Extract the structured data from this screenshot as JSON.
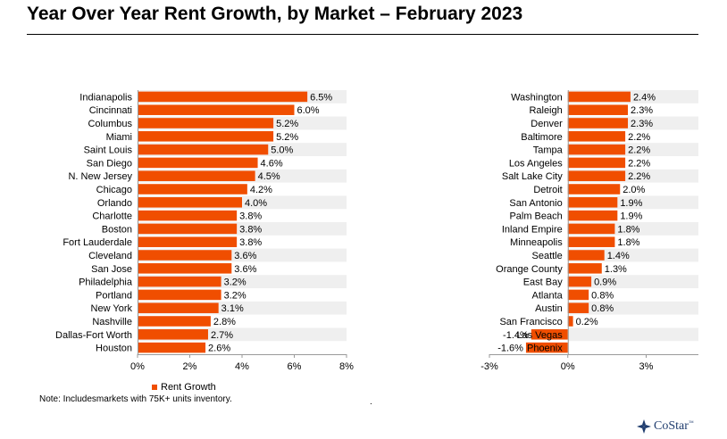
{
  "header": {
    "title": "Year Over Year Rent Growth, by Market –  February 2023"
  },
  "legend": {
    "label": "Rent Growth"
  },
  "note": "Note: Includesmarkets with 75K+ units inventory.",
  "stray_mark": ".",
  "logo": {
    "name": "CoStar",
    "tm": "™"
  },
  "colors": {
    "bar": "#f04e00",
    "stripe": "#efefef",
    "axis": "#999999"
  },
  "chart_data": [
    {
      "type": "bar",
      "orientation": "horizontal",
      "categories": [
        "Indianapolis",
        "Cincinnati",
        "Columbus",
        "Miami",
        "Saint Louis",
        "San Diego",
        "N. New Jersey",
        "Chicago",
        "Orlando",
        "Charlotte",
        "Boston",
        "Fort Lauderdale",
        "Cleveland",
        "San Jose",
        "Philadelphia",
        "Portland",
        "New York",
        "Nashville",
        "Dallas-Fort Worth",
        "Houston"
      ],
      "series": [
        {
          "name": "Rent Growth",
          "values": [
            6.5,
            6.0,
            5.2,
            5.2,
            5.0,
            4.6,
            4.5,
            4.2,
            4.0,
            3.8,
            3.8,
            3.8,
            3.6,
            3.6,
            3.2,
            3.2,
            3.1,
            2.8,
            2.7,
            2.6
          ]
        }
      ],
      "value_labels": [
        "6.5%",
        "6.0%",
        "5.2%",
        "5.2%",
        "5.0%",
        "4.6%",
        "4.5%",
        "4.2%",
        "4.0%",
        "3.8%",
        "3.8%",
        "3.8%",
        "3.6%",
        "3.6%",
        "3.2%",
        "3.2%",
        "3.1%",
        "2.8%",
        "2.7%",
        "2.6%"
      ],
      "xlim": [
        0,
        8
      ],
      "xticks": [
        0,
        2,
        4,
        6,
        8
      ],
      "xtick_labels": [
        "0%",
        "2%",
        "4%",
        "6%",
        "8%"
      ]
    },
    {
      "type": "bar",
      "orientation": "horizontal",
      "categories": [
        "Washington",
        "Raleigh",
        "Denver",
        "Baltimore",
        "Tampa",
        "Los Angeles",
        "Salt Lake City",
        "Detroit",
        "San Antonio",
        "Palm Beach",
        "Inland Empire",
        "Minneapolis",
        "Seattle",
        "Orange County",
        "East Bay",
        "Atlanta",
        "Austin",
        "San Francisco",
        "Las Vegas",
        "Phoenix"
      ],
      "series": [
        {
          "name": "Rent Growth",
          "values": [
            2.4,
            2.3,
            2.3,
            2.2,
            2.2,
            2.2,
            2.2,
            2.0,
            1.9,
            1.9,
            1.8,
            1.8,
            1.4,
            1.3,
            0.9,
            0.8,
            0.8,
            0.2,
            -1.4,
            -1.6
          ]
        }
      ],
      "value_labels": [
        "2.4%",
        "2.3%",
        "2.3%",
        "2.2%",
        "2.2%",
        "2.2%",
        "2.2%",
        "2.0%",
        "1.9%",
        "1.9%",
        "1.8%",
        "1.8%",
        "1.4%",
        "1.3%",
        "0.9%",
        "0.8%",
        "0.8%",
        "0.2%",
        "-1.4%",
        "-1.6%"
      ],
      "xlim": [
        -3,
        5
      ],
      "xticks": [
        -3,
        0,
        3
      ],
      "xtick_labels": [
        "-3%",
        "0%",
        "3%"
      ]
    }
  ]
}
